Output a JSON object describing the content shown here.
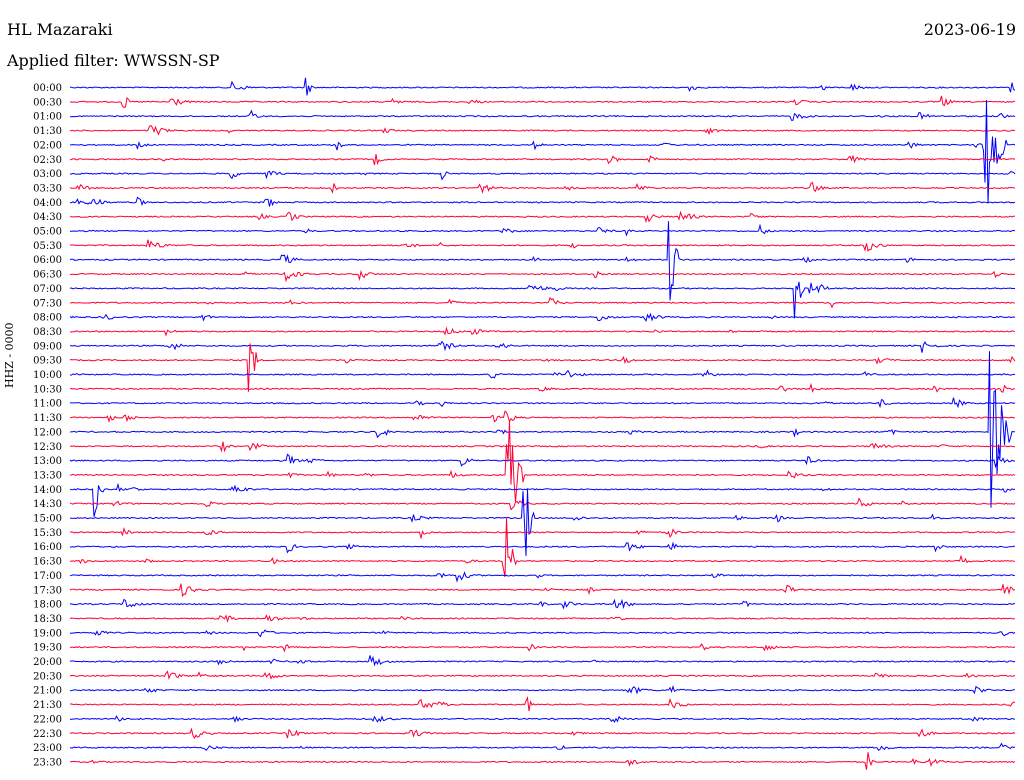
{
  "header": {
    "station": "HL Mazaraki",
    "date": "2023-06-19",
    "filter": "Applied filter: WWSSN-SP"
  },
  "colors": {
    "even": "#0000ff",
    "odd": "#ff0033"
  },
  "chart_data": {
    "type": "line",
    "title": "HL Mazaraki",
    "ylabel": "HHZ - 0000",
    "y_ticks": [
      "00:00",
      "00:30",
      "01:00",
      "01:30",
      "02:00",
      "02:30",
      "03:00",
      "03:30",
      "04:00",
      "04:30",
      "05:00",
      "05:30",
      "06:00",
      "06:30",
      "07:00",
      "07:30",
      "08:00",
      "08:30",
      "09:00",
      "09:30",
      "10:00",
      "10:30",
      "11:00",
      "11:30",
      "12:00",
      "12:30",
      "13:00",
      "13:30",
      "14:00",
      "14:30",
      "15:00",
      "15:30",
      "16:00",
      "16:30",
      "17:00",
      "17:30",
      "18:00",
      "18:30",
      "19:00",
      "19:30",
      "20:00",
      "20:30",
      "21:00",
      "21:30",
      "22:00",
      "22:30",
      "23:00",
      "23:30"
    ],
    "grid": false,
    "events": [
      {
        "trace": "00:00",
        "minute": 7.5,
        "amplitude": 12
      },
      {
        "trace": "00:30",
        "minute": 1.7,
        "amplitude": 12
      },
      {
        "trace": "02:00",
        "minute": 8.5,
        "amplitude": 8
      },
      {
        "trace": "03:30",
        "minute": 8.3,
        "amplitude": 10
      },
      {
        "trace": "06:00",
        "minute": 19.0,
        "amplitude": 60
      },
      {
        "trace": "07:00",
        "minute": 23.0,
        "amplitude": 35
      },
      {
        "trace": "09:30",
        "minute": 5.7,
        "amplitude": 40
      },
      {
        "trace": "13:30",
        "minute": 13.9,
        "amplitude": 120
      },
      {
        "trace": "14:00",
        "minute": 0.8,
        "amplitude": 30
      },
      {
        "trace": "15:00",
        "minute": 14.4,
        "amplitude": 60
      },
      {
        "trace": "16:30",
        "minute": 13.8,
        "amplitude": 60
      },
      {
        "trace": "21:30",
        "minute": 14.5,
        "amplitude": 12
      },
      {
        "trace": "23:30",
        "minute": 25.3,
        "amplitude": 12
      },
      {
        "trace": "12:00",
        "minute": 29.2,
        "amplitude": 180
      },
      {
        "trace": "02:00",
        "minute": 29.0,
        "amplitude": 200
      }
    ]
  }
}
